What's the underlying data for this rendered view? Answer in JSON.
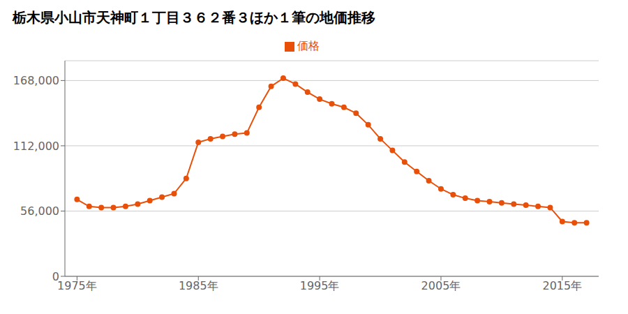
{
  "chart_data": {
    "type": "line",
    "title": "栃木県小山市天神町１丁目３６２番３ほか１筆の地価推移",
    "x": [
      1975,
      1976,
      1977,
      1978,
      1979,
      1980,
      1981,
      1982,
      1983,
      1984,
      1985,
      1986,
      1987,
      1988,
      1989,
      1990,
      1991,
      1992,
      1993,
      1994,
      1995,
      1996,
      1997,
      1998,
      1999,
      2000,
      2001,
      2002,
      2003,
      2004,
      2005,
      2006,
      2007,
      2008,
      2009,
      2010,
      2011,
      2012,
      2013,
      2014,
      2015,
      2016,
      2017
    ],
    "series": [
      {
        "name": "価格",
        "color": "#e8500a",
        "values": [
          66000,
          60000,
          59000,
          59000,
          60000,
          62000,
          65000,
          68000,
          71000,
          84000,
          115000,
          118000,
          120000,
          122000,
          123000,
          145000,
          163000,
          170000,
          165000,
          158000,
          152000,
          148000,
          145000,
          140000,
          130000,
          118000,
          108000,
          98000,
          90000,
          82000,
          75000,
          70000,
          67000,
          65000,
          64000,
          63000,
          62000,
          61000,
          60000,
          59000,
          47000,
          46000,
          46000
        ]
      }
    ],
    "xlim": [
      1974,
      2018
    ],
    "xticks": [
      {
        "value": 1975,
        "label": "1975年"
      },
      {
        "value": 1985,
        "label": "1985年"
      },
      {
        "value": 1995,
        "label": "1995年"
      },
      {
        "value": 2005,
        "label": "2005年"
      },
      {
        "value": 2015,
        "label": "2015年"
      }
    ],
    "ylim": [
      0,
      185000
    ],
    "yticks": [
      0,
      {
        "value": 56000,
        "label": "56,000"
      },
      {
        "value": 112000,
        "label": "112,000"
      },
      {
        "value": 168000,
        "label": "168,000"
      }
    ],
    "grid": "y",
    "legend": "top",
    "marker": "circle"
  }
}
